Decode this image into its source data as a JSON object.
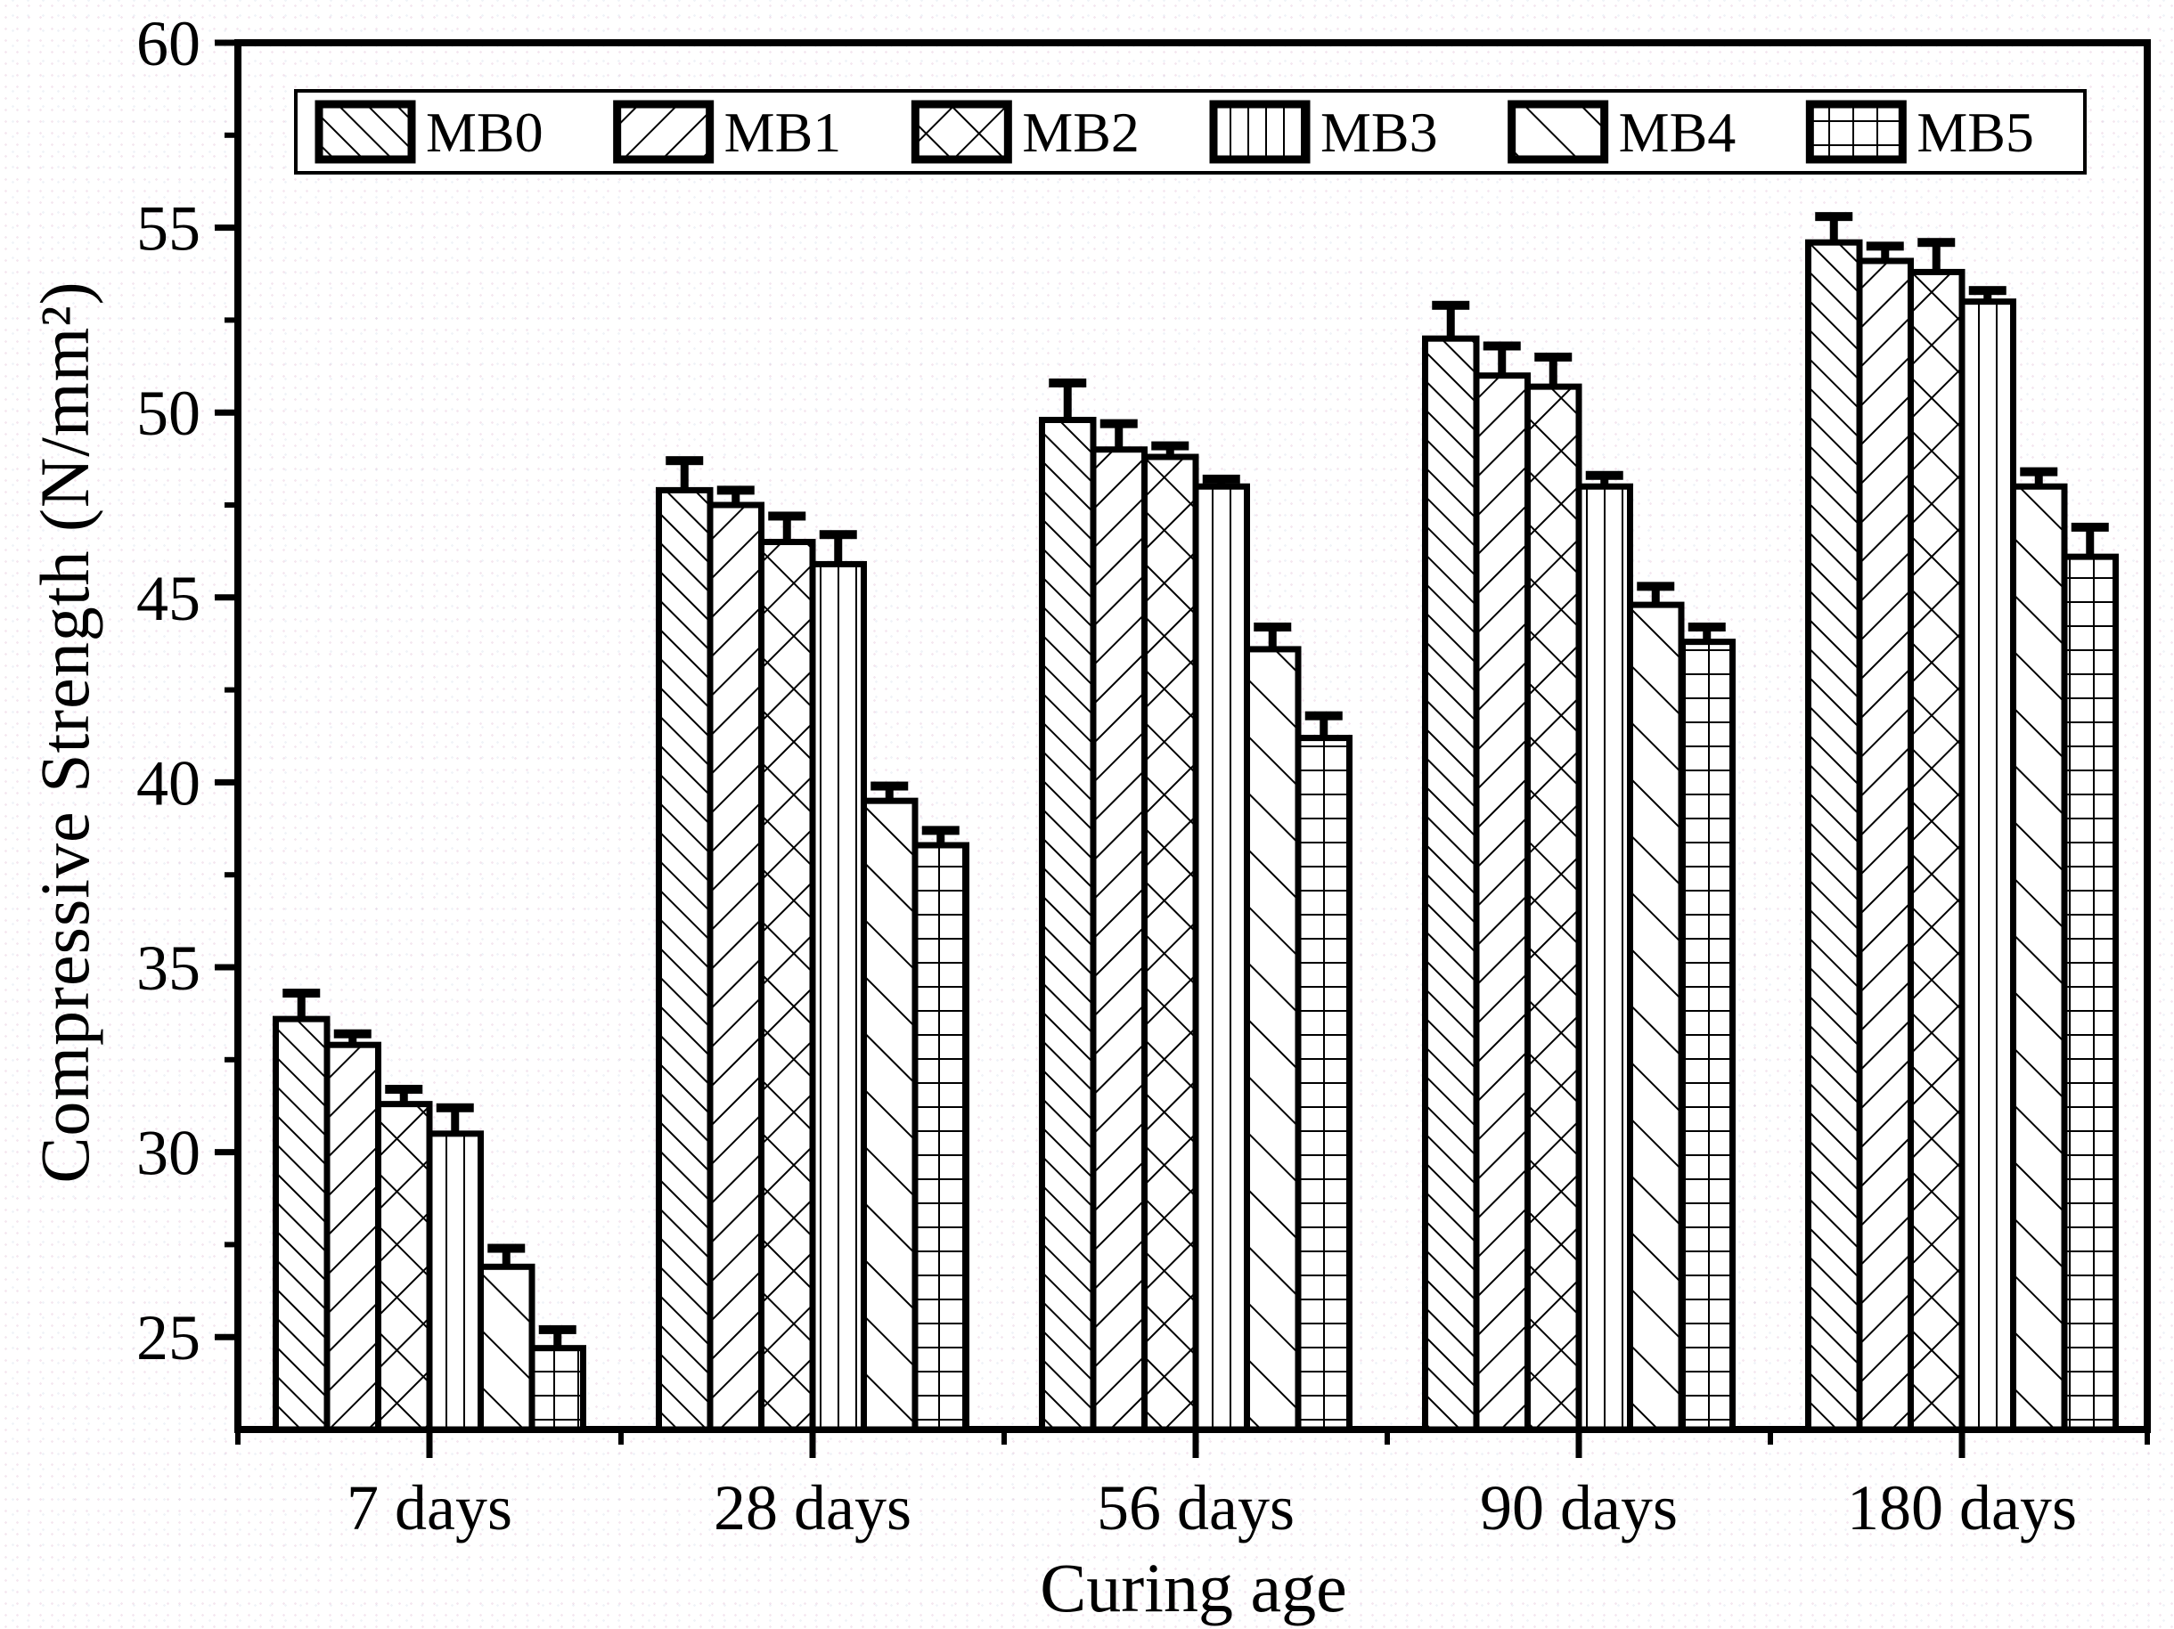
{
  "figure": {
    "background": "#ffffff",
    "ink": "#000000",
    "bar_fill": "#ffffff"
  },
  "chart_data": {
    "type": "bar",
    "title": "",
    "xlabel": "Curing age",
    "ylabel": "Compressive Strength (N/mm²)",
    "categories": [
      "7 days",
      "28 days",
      "56 days",
      "90 days",
      "180 days"
    ],
    "series": [
      {
        "name": "MB0",
        "pattern": "diagonal-forward-dense",
        "values": [
          33.6,
          47.9,
          49.8,
          52.0,
          54.6
        ],
        "errors": [
          0.7,
          0.8,
          1.0,
          0.9,
          0.7
        ]
      },
      {
        "name": "MB1",
        "pattern": "diagonal-back",
        "values": [
          32.9,
          47.5,
          49.0,
          51.0,
          54.1
        ],
        "errors": [
          0.3,
          0.4,
          0.7,
          0.8,
          0.4
        ]
      },
      {
        "name": "MB2",
        "pattern": "crosshatch",
        "values": [
          31.3,
          46.5,
          48.8,
          50.7,
          53.8
        ],
        "errors": [
          0.4,
          0.7,
          0.3,
          0.8,
          0.8
        ]
      },
      {
        "name": "MB3",
        "pattern": "vertical-lines",
        "values": [
          30.5,
          45.9,
          48.0,
          48.0,
          53.0
        ],
        "errors": [
          0.7,
          0.8,
          0.2,
          0.3,
          0.3
        ]
      },
      {
        "name": "MB4",
        "pattern": "diagonal-forward-sparse",
        "values": [
          26.9,
          39.5,
          43.6,
          44.8,
          48.0
        ],
        "errors": [
          0.5,
          0.4,
          0.6,
          0.5,
          0.4
        ]
      },
      {
        "name": "MB5",
        "pattern": "grid",
        "values": [
          24.7,
          38.3,
          41.2,
          43.8,
          46.1
        ],
        "errors": [
          0.5,
          0.4,
          0.6,
          0.4,
          0.8
        ]
      }
    ],
    "ylim": [
      22.5,
      60
    ],
    "yticks": [
      25,
      30,
      35,
      40,
      45,
      50,
      55,
      60
    ],
    "ytick_minor_step": 2.5,
    "grid": false,
    "error_bars": true,
    "legend_position": "top-inside",
    "legend_labels": [
      "MB0",
      "MB1",
      "MB2",
      "MB3",
      "MB4",
      "MB5"
    ]
  }
}
